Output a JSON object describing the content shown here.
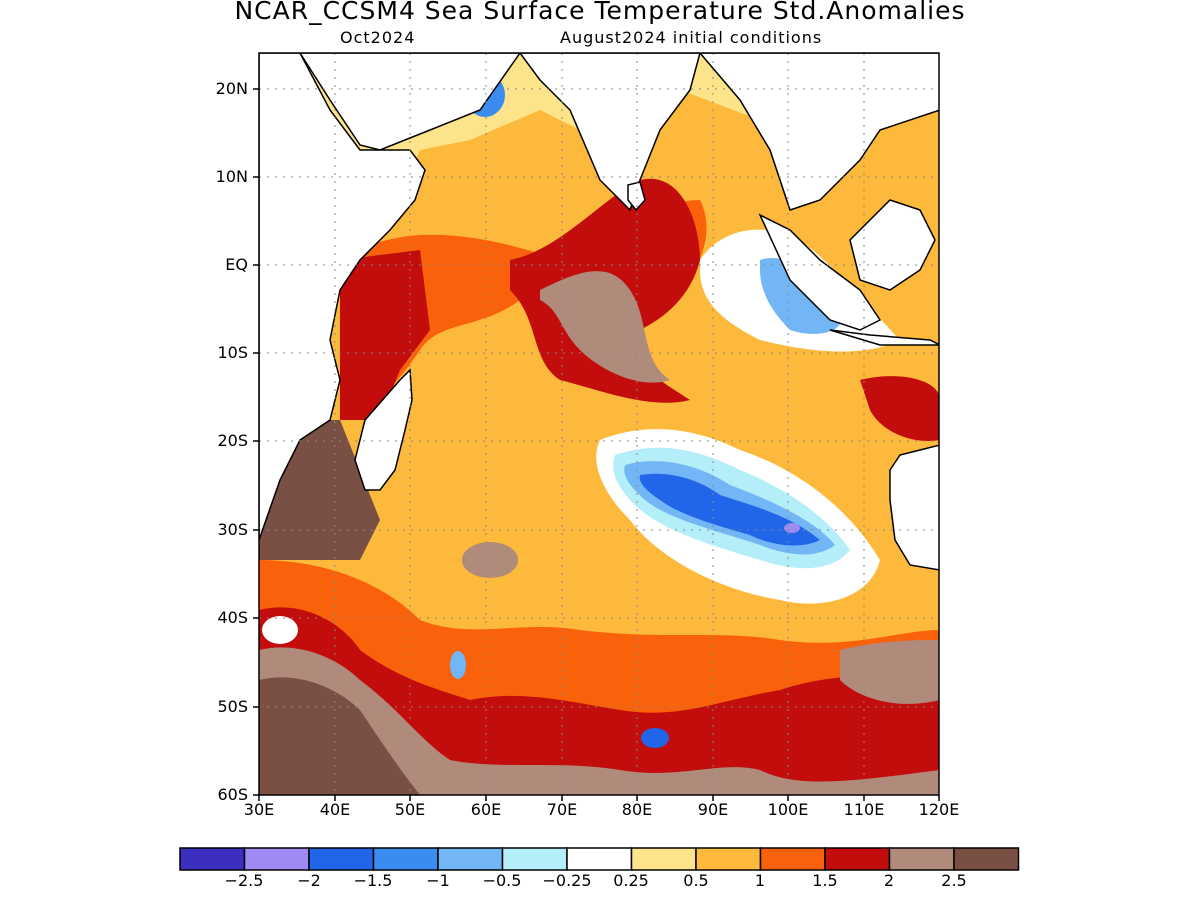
{
  "header": {
    "title": "NCAR_CCSM4 Sea Surface Temperature Std.Anomalies",
    "subtitle_left": "Oct2024",
    "subtitle_right": "August2024 initial conditions"
  },
  "axes": {
    "lat_labels": [
      "20N",
      "10N",
      "EQ",
      "10S",
      "20S",
      "30S",
      "40S",
      "50S",
      "60S"
    ],
    "lon_labels": [
      "30E",
      "40E",
      "50E",
      "60E",
      "70E",
      "80E",
      "90E",
      "100E",
      "110E",
      "120E"
    ],
    "lat_range": [
      -60,
      24
    ],
    "lon_range": [
      30,
      120
    ],
    "grid": "dotted"
  },
  "colorbar": {
    "labels": [
      "−2.5",
      "−2",
      "−1.5",
      "−1",
      "−0.5",
      "−0.25",
      "0.25",
      "0.5",
      "1",
      "1.5",
      "2",
      "2.5"
    ],
    "colors": [
      "#3b2ec0",
      "#9e8af2",
      "#2166e8",
      "#3a8cf0",
      "#73b6f5",
      "#b4eef8",
      "#ffffff",
      "#fde38a",
      "#fdb93c",
      "#f9620b",
      "#c20d0c",
      "#b08a7a",
      "#7a4f44"
    ]
  },
  "map": {
    "type": "filled-contour",
    "land_color": "#ffffff",
    "coast_color": "#000000"
  }
}
